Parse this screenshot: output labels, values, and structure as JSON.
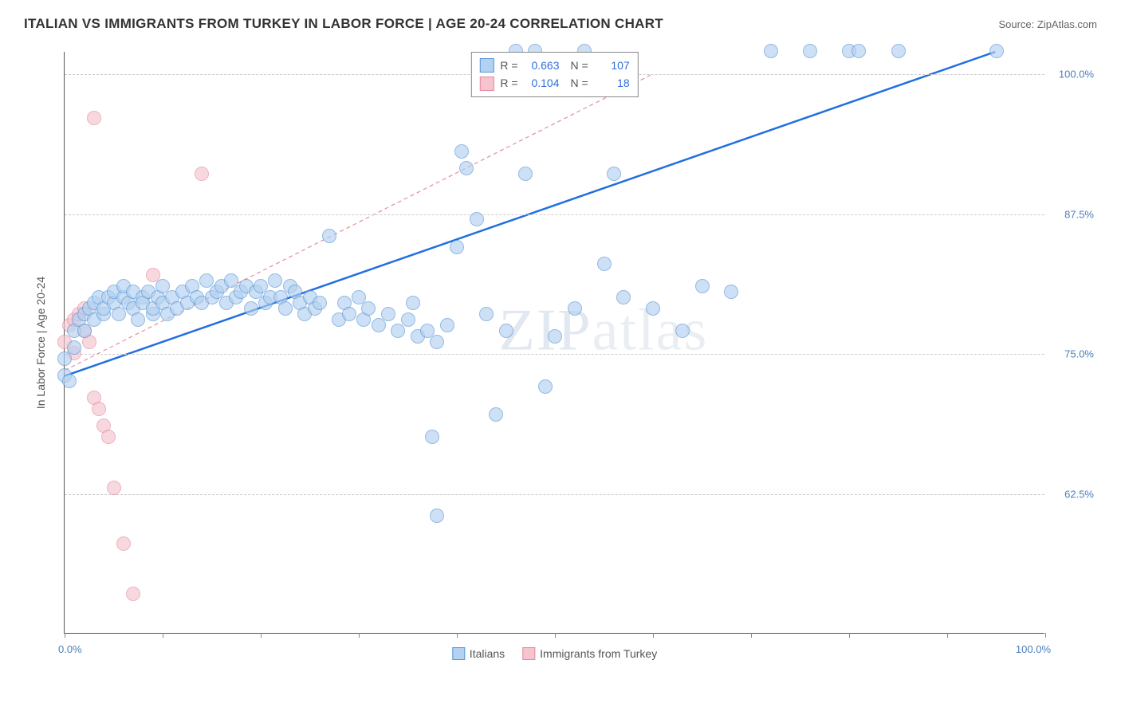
{
  "header": {
    "title": "ITALIAN VS IMMIGRANTS FROM TURKEY IN LABOR FORCE | AGE 20-24 CORRELATION CHART",
    "source_prefix": "Source: ",
    "source_name": "ZipAtlas.com"
  },
  "watermark": {
    "zip": "ZIP",
    "atlas": "atlas"
  },
  "chart": {
    "type": "scatter",
    "background_color": "#ffffff",
    "grid_color": "#cccccc",
    "axis_color": "#555555",
    "tick_label_color": "#4a7ebb",
    "yaxis_title": "In Labor Force | Age 20-24",
    "yaxis_title_fontsize": 14,
    "xlim": [
      0,
      100
    ],
    "ylim": [
      50,
      102
    ],
    "xtick_positions": [
      0,
      10,
      20,
      30,
      40,
      50,
      60,
      70,
      80,
      90,
      100
    ],
    "xaxis_label_left": "0.0%",
    "xaxis_label_right": "100.0%",
    "ygrid": [
      {
        "y": 62.5,
        "label": "62.5%"
      },
      {
        "y": 75.0,
        "label": "75.0%"
      },
      {
        "y": 87.5,
        "label": "87.5%"
      },
      {
        "y": 100.0,
        "label": "100.0%"
      }
    ],
    "point_radius": 9,
    "point_stroke_width": 1,
    "series": [
      {
        "id": "italians",
        "label": "Italians",
        "fill": "#b3d1f0",
        "stroke": "#5a96d6",
        "fill_opacity": 0.65,
        "trend": {
          "x1": 0,
          "y1": 73.0,
          "x2": 95,
          "y2": 102.0,
          "color": "#1f6fe0",
          "width": 2.5,
          "dash": ""
        },
        "R": "0.663",
        "N": "107",
        "points": [
          [
            0,
            73.0
          ],
          [
            0,
            74.5
          ],
          [
            0.5,
            72.5
          ],
          [
            1,
            75.5
          ],
          [
            1,
            77.0
          ],
          [
            1.5,
            78.0
          ],
          [
            2,
            77.0
          ],
          [
            2,
            78.5
          ],
          [
            2.5,
            79.0
          ],
          [
            3,
            78.0
          ],
          [
            3,
            79.5
          ],
          [
            3.5,
            80.0
          ],
          [
            4,
            78.5
          ],
          [
            4,
            79.0
          ],
          [
            4.5,
            80.0
          ],
          [
            5,
            79.5
          ],
          [
            5,
            80.5
          ],
          [
            5.5,
            78.5
          ],
          [
            6,
            80.0
          ],
          [
            6,
            81.0
          ],
          [
            6.5,
            79.5
          ],
          [
            7,
            80.5
          ],
          [
            7,
            79.0
          ],
          [
            7.5,
            78.0
          ],
          [
            8,
            80.0
          ],
          [
            8,
            79.5
          ],
          [
            8.5,
            80.5
          ],
          [
            9,
            78.5
          ],
          [
            9,
            79.0
          ],
          [
            9.5,
            80.0
          ],
          [
            10,
            79.5
          ],
          [
            10,
            81.0
          ],
          [
            10.5,
            78.5
          ],
          [
            11,
            80.0
          ],
          [
            11.5,
            79.0
          ],
          [
            12,
            80.5
          ],
          [
            12.5,
            79.5
          ],
          [
            13,
            81.0
          ],
          [
            13.5,
            80.0
          ],
          [
            14,
            79.5
          ],
          [
            14.5,
            81.5
          ],
          [
            15,
            80.0
          ],
          [
            15.5,
            80.5
          ],
          [
            16,
            81.0
          ],
          [
            16.5,
            79.5
          ],
          [
            17,
            81.5
          ],
          [
            17.5,
            80.0
          ],
          [
            18,
            80.5
          ],
          [
            18.5,
            81.0
          ],
          [
            19,
            79.0
          ],
          [
            19.5,
            80.5
          ],
          [
            20,
            81.0
          ],
          [
            20.5,
            79.5
          ],
          [
            21,
            80.0
          ],
          [
            21.5,
            81.5
          ],
          [
            22,
            80.0
          ],
          [
            22.5,
            79.0
          ],
          [
            23,
            81.0
          ],
          [
            23.5,
            80.5
          ],
          [
            24,
            79.5
          ],
          [
            24.5,
            78.5
          ],
          [
            25,
            80.0
          ],
          [
            25.5,
            79.0
          ],
          [
            26,
            79.5
          ],
          [
            27,
            85.5
          ],
          [
            28,
            78.0
          ],
          [
            28.5,
            79.5
          ],
          [
            29,
            78.5
          ],
          [
            30,
            80.0
          ],
          [
            30.5,
            78.0
          ],
          [
            31,
            79.0
          ],
          [
            32,
            77.5
          ],
          [
            33,
            78.5
          ],
          [
            34,
            77.0
          ],
          [
            35,
            78.0
          ],
          [
            35.5,
            79.5
          ],
          [
            36,
            76.5
          ],
          [
            37,
            77.0
          ],
          [
            37.5,
            67.5
          ],
          [
            38,
            76.0
          ],
          [
            38,
            60.5
          ],
          [
            39,
            77.5
          ],
          [
            40,
            84.5
          ],
          [
            40.5,
            93.0
          ],
          [
            41,
            91.5
          ],
          [
            42,
            87.0
          ],
          [
            43,
            78.5
          ],
          [
            44,
            69.5
          ],
          [
            45,
            77.0
          ],
          [
            46,
            102.0
          ],
          [
            47,
            91.0
          ],
          [
            48,
            102.0
          ],
          [
            49,
            72.0
          ],
          [
            50,
            76.5
          ],
          [
            52,
            79.0
          ],
          [
            53,
            102.0
          ],
          [
            55,
            83.0
          ],
          [
            56,
            91.0
          ],
          [
            57,
            80.0
          ],
          [
            60,
            79.0
          ],
          [
            63,
            77.0
          ],
          [
            65,
            81.0
          ],
          [
            68,
            80.5
          ],
          [
            72,
            102.0
          ],
          [
            76,
            102.0
          ],
          [
            80,
            102.0
          ],
          [
            81,
            102.0
          ],
          [
            85,
            102.0
          ],
          [
            95,
            102.0
          ]
        ]
      },
      {
        "id": "turkey",
        "label": "Immigrants from Turkey",
        "fill": "#f5c4cf",
        "stroke": "#e6899f",
        "fill_opacity": 0.65,
        "trend": {
          "x1": 0,
          "y1": 73.5,
          "x2": 60,
          "y2": 100.0,
          "color": "#e58ba0",
          "width": 1.2,
          "dash": "5,4"
        },
        "R": "0.104",
        "N": "18",
        "points": [
          [
            0,
            76.0
          ],
          [
            0.5,
            77.5
          ],
          [
            1,
            78.0
          ],
          [
            1.5,
            78.5
          ],
          [
            2,
            79.0
          ],
          [
            2,
            77.0
          ],
          [
            2.5,
            76.0
          ],
          [
            3,
            71.0
          ],
          [
            3.5,
            70.0
          ],
          [
            4,
            68.5
          ],
          [
            4.5,
            67.5
          ],
          [
            3,
            96.0
          ],
          [
            5,
            63.0
          ],
          [
            6,
            58.0
          ],
          [
            7,
            53.5
          ],
          [
            9,
            82.0
          ],
          [
            14,
            91.0
          ],
          [
            1,
            75.0
          ]
        ]
      }
    ],
    "legend_top": {
      "border_color": "#888888",
      "bg": "#ffffff",
      "label_R": "R =",
      "label_N": "N ="
    },
    "legend_bottom_swatch_size": 16
  }
}
